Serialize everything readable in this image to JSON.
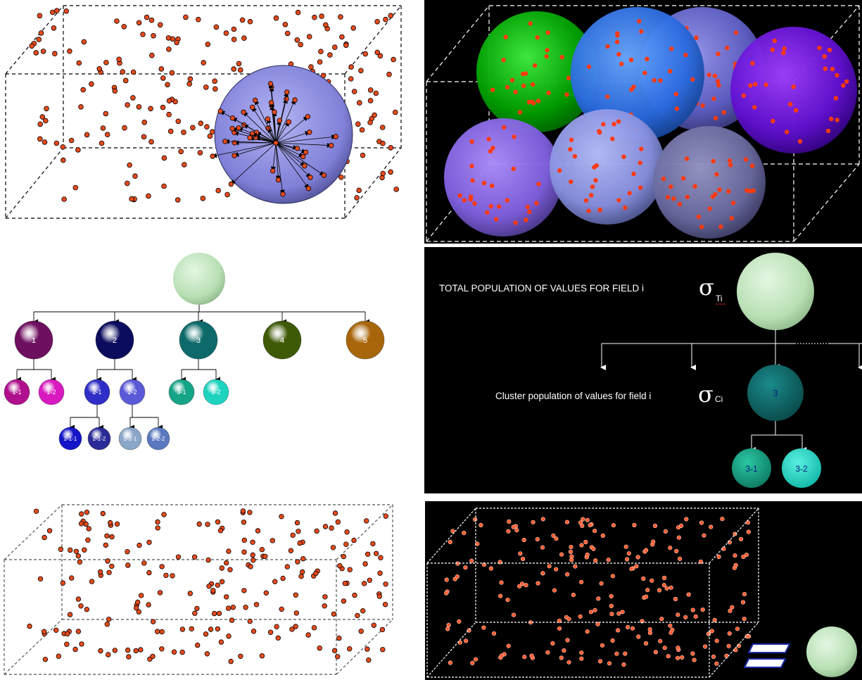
{
  "tree": {
    "root": {
      "label": ""
    },
    "level1": [
      {
        "label": "1",
        "color": "#6e1060"
      },
      {
        "label": "2",
        "color": "#0c0c5e"
      },
      {
        "label": "3",
        "color": "#0e6a6a"
      },
      {
        "label": "4",
        "color": "#3f5a06"
      },
      {
        "label": "5",
        "color": "#a8660a"
      }
    ],
    "level2": [
      {
        "label": "1-1",
        "parent": 0,
        "color": "#b0108e"
      },
      {
        "label": "1-2",
        "parent": 0,
        "color": "#d81ac0"
      },
      {
        "label": "2-1",
        "parent": 1,
        "color": "#2f2ec6"
      },
      {
        "label": "2-2",
        "parent": 1,
        "color": "#5a5ad8"
      },
      {
        "label": "3-1",
        "parent": 2,
        "color": "#14a486"
      },
      {
        "label": "3-2",
        "parent": 2,
        "color": "#1ed4c0"
      }
    ],
    "level3": [
      {
        "label": "2-1-1",
        "parent": 2,
        "color": "#1414c8"
      },
      {
        "label": "2-1-2",
        "parent": 2,
        "color": "#2a2a98"
      },
      {
        "label": "2-2-1",
        "parent": 3,
        "color": "#8aa6c8"
      },
      {
        "label": "2-2-2",
        "parent": 3,
        "color": "#5a78c0"
      }
    ]
  },
  "sigma_panel": {
    "total_label": "TOTAL POPULATION OF VALUES FOR FIELD i",
    "total_sigma": "σ",
    "total_sub": "Ti",
    "cluster_label": "Cluster population of values for field i",
    "cluster_sigma": "σ",
    "cluster_sub": "Ci",
    "cluster_node": "3",
    "children": [
      "3-1",
      "3-2"
    ],
    "ellipsis": "......"
  },
  "equals_sign": "="
}
